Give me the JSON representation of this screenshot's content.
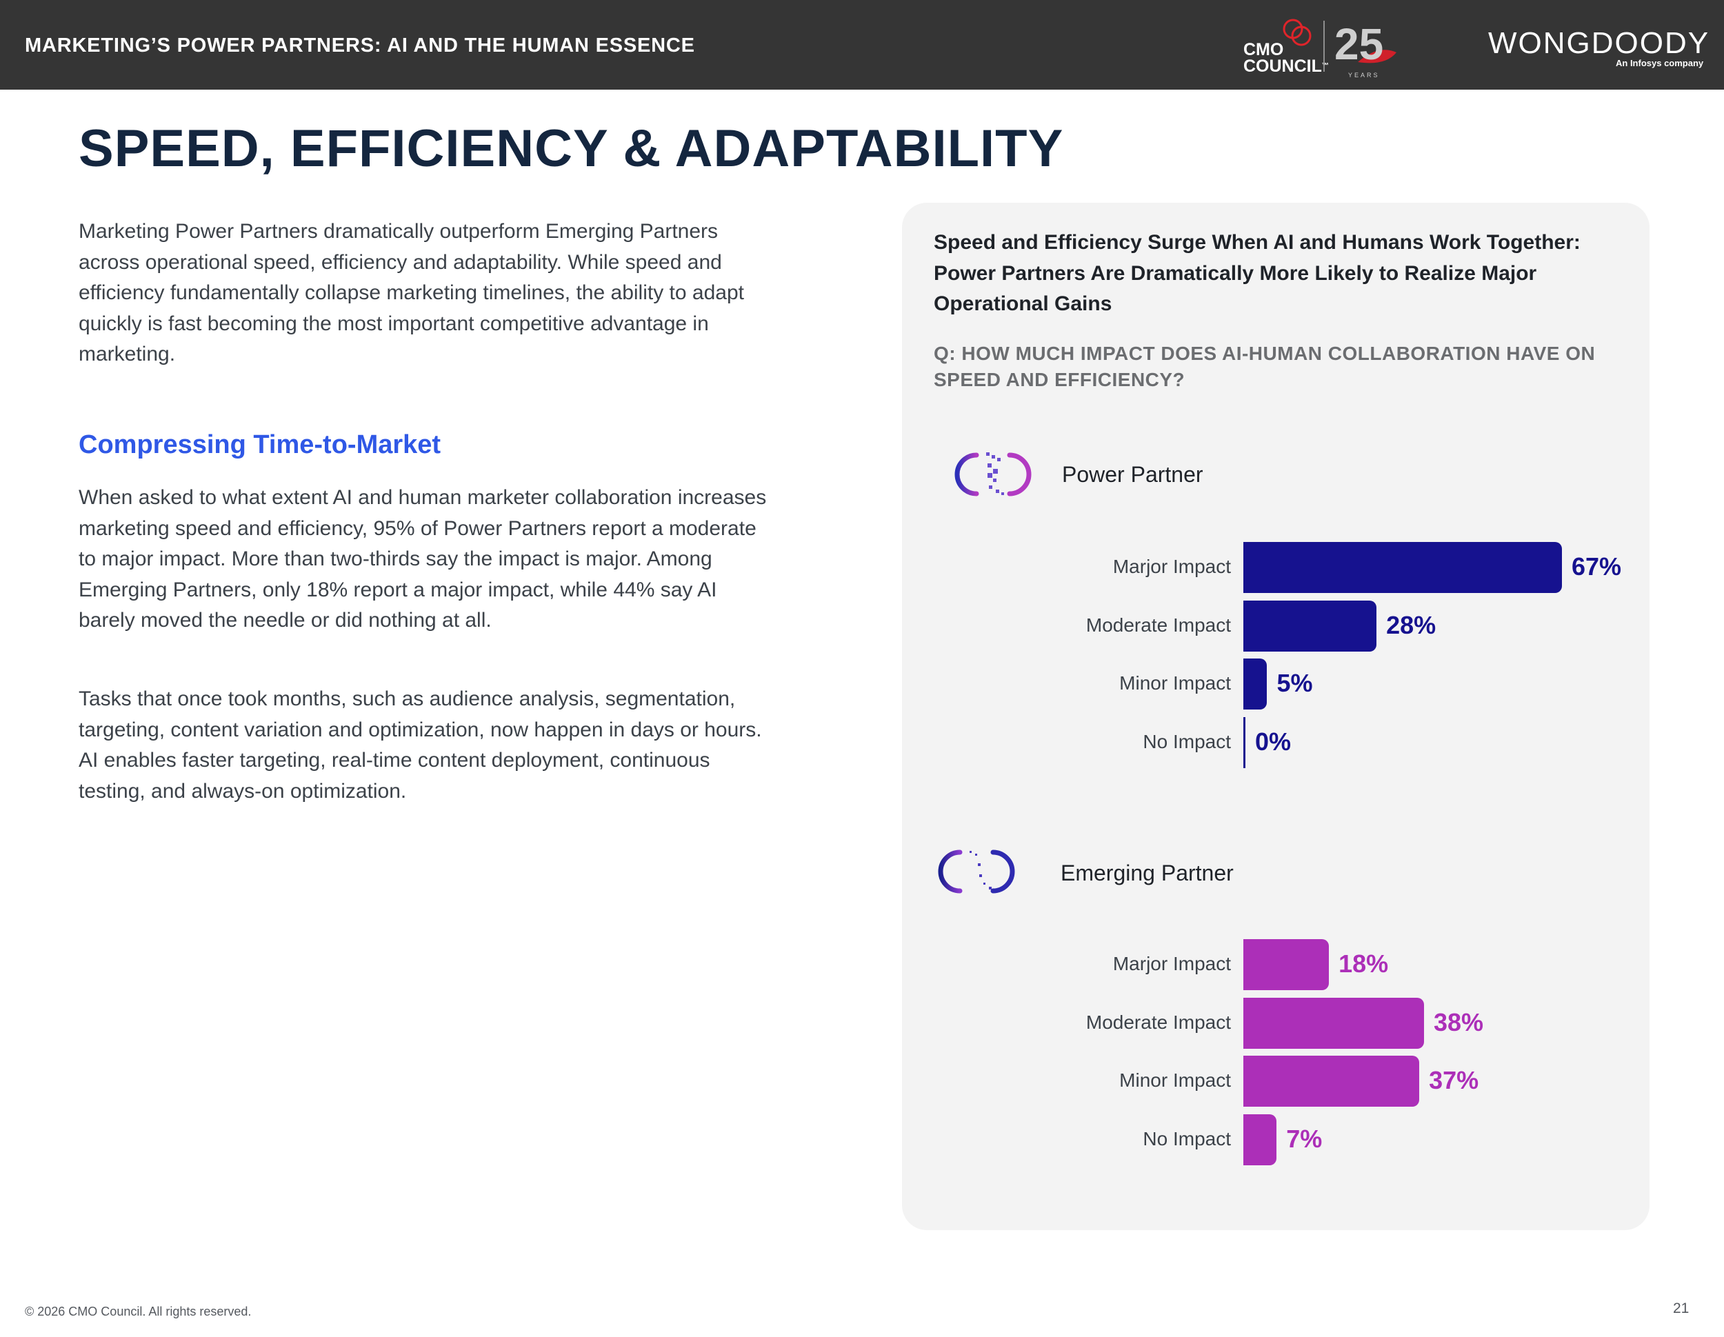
{
  "header": {
    "title": "MARKETING’S POWER PARTNERS: AI AND THE HUMAN ESSENCE",
    "logo_cmo_line1": "CMO",
    "logo_cmo_line2": "COUNCIL",
    "logo_cmo_mark": "™",
    "logo_25": "25",
    "logo_years": "YEARS",
    "logo_wong": "WONGDOODY",
    "logo_infosys": "An Infosys company"
  },
  "page": {
    "title": "SPEED, EFFICIENCY & ADAPTABILITY",
    "intro": "Marketing Power Partners dramatically outperform Emerging Partners across operational speed, efficiency and adaptability. While speed and efficiency fundamentally collapse marketing timelines, the ability to adapt quickly is fast becoming the most important competitive advantage in marketing.",
    "subheading": "Compressing Time-to-Market",
    "body1": "When asked to what extent AI and human marketer collaboration increases marketing speed and efficiency, 95% of Power Partners report a moderate to major impact. More than two-thirds say the impact is major. Among Emerging Partners, only 18% report a major impact, while 44% say AI barely moved the needle or did nothing at all.",
    "body2": "Tasks that once took months, such as audience analysis, segmentation, targeting, content variation and optimization, now happen in days or hours. AI enables faster targeting, real-time content deployment, continuous testing, and always-on optimization."
  },
  "colors": {
    "power": "#16128f",
    "emerging": "#ac2fb8",
    "blue_accent": "#2f58e6",
    "header_bg": "#353535"
  },
  "chart_data": {
    "type": "bar",
    "orientation": "horizontal",
    "title": "Speed and Efficiency Surge When AI and Humans Work Together: Power Partners Are Dramatically More Likely to Realize Major Operational Gains",
    "question": "Q: HOW MUCH IMPACT DOES AI-HUMAN COLLABORATION HAVE ON SPEED AND EFFICIENCY?",
    "categories": [
      "Marjor Impact",
      "Moderate Impact",
      "Minor Impact",
      "No Impact"
    ],
    "unit": "%",
    "xlim": [
      0,
      67
    ],
    "grid": false,
    "series": [
      {
        "name": "Power Partner",
        "values": [
          67,
          28,
          5,
          0
        ],
        "labels": [
          "67%",
          "28%",
          "5%",
          "0%"
        ],
        "color": "#16128f",
        "icon": "power-partner-icon"
      },
      {
        "name": "Emerging Partner",
        "values": [
          18,
          38,
          37,
          7
        ],
        "labels": [
          "18%",
          "38%",
          "37%",
          "7%"
        ],
        "color": "#ac2fb8",
        "icon": "emerging-partner-icon"
      }
    ]
  },
  "footer": {
    "copyright": "© 2026 CMO Council. All rights reserved.",
    "page_number": "21"
  }
}
